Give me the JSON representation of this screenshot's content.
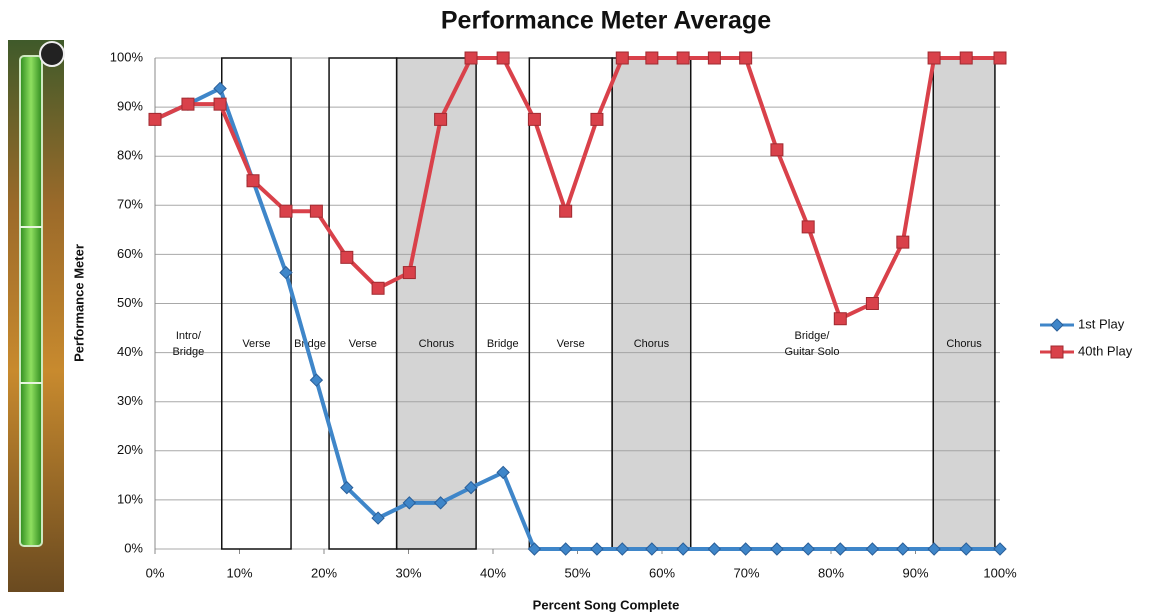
{
  "chart_data": {
    "type": "line",
    "title": "Performance Meter Average",
    "x_label": "Percent Song Complete",
    "y_label": "Performance Meter",
    "xlim": [
      0,
      100
    ],
    "ylim": [
      0,
      100
    ],
    "xticks": [
      {
        "value": 0,
        "label": "0%"
      },
      {
        "value": 10,
        "label": "10%"
      },
      {
        "value": 20,
        "label": "20%"
      },
      {
        "value": 30,
        "label": "30%"
      },
      {
        "value": 40,
        "label": "40%"
      },
      {
        "value": 50,
        "label": "50%"
      },
      {
        "value": 60,
        "label": "60%"
      },
      {
        "value": 70,
        "label": "70%"
      },
      {
        "value": 80,
        "label": "80%"
      },
      {
        "value": 90,
        "label": "90%"
      },
      {
        "value": 100,
        "label": "100%"
      }
    ],
    "yticks": [
      {
        "value": 0,
        "label": "0%"
      },
      {
        "value": 10,
        "label": "10%"
      },
      {
        "value": 20,
        "label": "20%"
      },
      {
        "value": 30,
        "label": "30%"
      },
      {
        "value": 40,
        "label": "40%"
      },
      {
        "value": 50,
        "label": "50%"
      },
      {
        "value": 60,
        "label": "60%"
      },
      {
        "value": 70,
        "label": "70%"
      },
      {
        "value": 80,
        "label": "80%"
      },
      {
        "value": 90,
        "label": "90%"
      },
      {
        "value": 100,
        "label": "100%"
      }
    ],
    "grid": true,
    "legend": "right",
    "x": [
      0,
      3.9,
      7.7,
      11.6,
      15.5,
      19.1,
      22.7,
      26.4,
      30.1,
      33.8,
      37.4,
      41.2,
      44.9,
      48.6,
      52.3,
      55.3,
      58.8,
      62.5,
      66.2,
      69.9,
      73.6,
      77.3,
      81.1,
      84.9,
      88.5,
      92.2,
      96,
      100
    ],
    "series": [
      {
        "name": "1st Play",
        "color": "#3f86c9",
        "marker": "diamond",
        "values": [
          87.5,
          90.6,
          93.8,
          75,
          56.3,
          34.4,
          12.5,
          6.3,
          9.4,
          9.4,
          12.5,
          15.6,
          0,
          0,
          0,
          0,
          0,
          0,
          0,
          0,
          0,
          0,
          0,
          0,
          0,
          0,
          0,
          0
        ]
      },
      {
        "name": "40th Play",
        "color": "#d9414a",
        "marker": "square",
        "values": [
          87.5,
          90.6,
          90.6,
          75,
          68.8,
          68.8,
          59.4,
          53.1,
          56.3,
          87.5,
          100,
          100,
          87.5,
          68.8,
          87.5,
          100,
          100,
          100,
          100,
          100,
          81.3,
          65.6,
          46.9,
          50,
          62.5,
          100,
          100,
          100
        ]
      }
    ],
    "sections": [
      {
        "label": [
          "Intro/",
          "Bridge"
        ],
        "start": 0,
        "end": 7.9,
        "boxed": false,
        "shaded": false
      },
      {
        "label": [
          "Verse"
        ],
        "start": 7.9,
        "end": 16.1,
        "boxed": true,
        "shaded": false
      },
      {
        "label": [
          "Bridge"
        ],
        "start": 16.1,
        "end": 20.6,
        "boxed": false,
        "shaded": false
      },
      {
        "label": [
          "Verse"
        ],
        "start": 20.6,
        "end": 28.6,
        "boxed": true,
        "shaded": false
      },
      {
        "label": [
          "Chorus"
        ],
        "start": 28.6,
        "end": 38,
        "boxed": true,
        "shaded": true
      },
      {
        "label": [
          "Bridge"
        ],
        "start": 38,
        "end": 44.3,
        "boxed": false,
        "shaded": false
      },
      {
        "label": [
          "Verse"
        ],
        "start": 44.3,
        "end": 54.1,
        "boxed": true,
        "shaded": false
      },
      {
        "label": [
          "Chorus"
        ],
        "start": 54.1,
        "end": 63.4,
        "boxed": true,
        "shaded": true
      },
      {
        "label": [
          "Bridge/",
          "Guitar Solo"
        ],
        "start": 63.4,
        "end": 92.1,
        "boxed": false,
        "shaded": false
      },
      {
        "label": [
          "Chorus"
        ],
        "start": 92.1,
        "end": 99.4,
        "boxed": true,
        "shaded": true
      }
    ]
  }
}
